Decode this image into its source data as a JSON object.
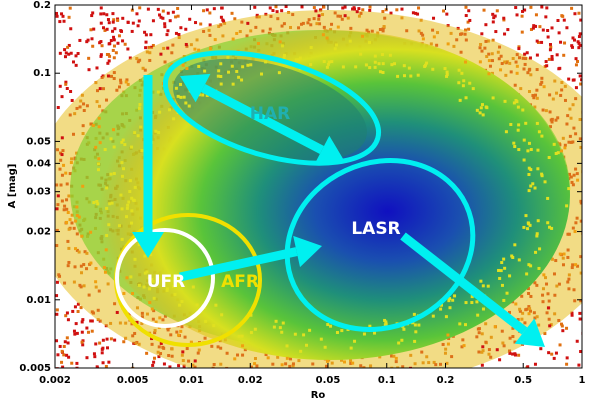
{
  "chart_data": {
    "type": "density",
    "x_label": "Ro",
    "y_label": "A [mag]",
    "xscale": "log",
    "yscale": "log",
    "xlim": [
      0.002,
      1
    ],
    "ylim": [
      0.005,
      0.2
    ],
    "xticks": [
      0.002,
      0.005,
      0.01,
      0.02,
      0.05,
      0.1,
      0.2,
      0.5,
      1
    ],
    "yticks": [
      0.005,
      0.01,
      0.02,
      0.03,
      0.04,
      0.05,
      0.1,
      0.2
    ],
    "annotations": [
      "HAR",
      "LASR",
      "UFR",
      "AFR"
    ]
  }
}
